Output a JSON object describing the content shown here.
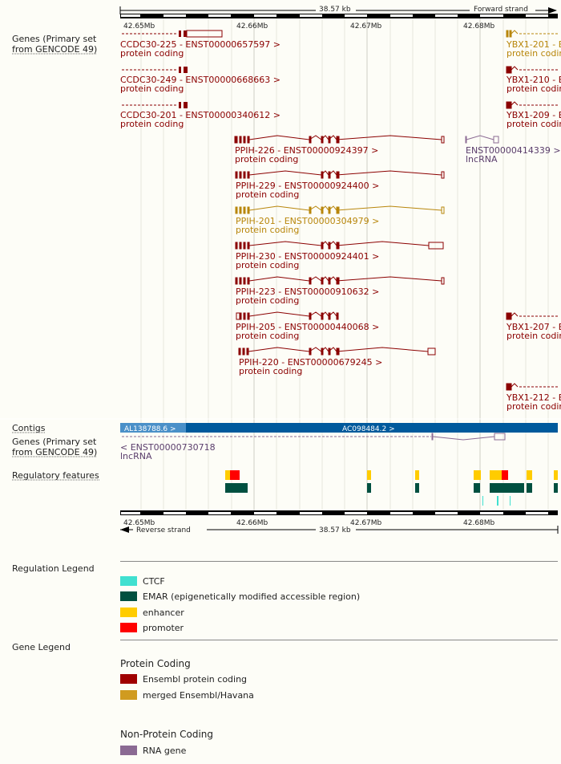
{
  "scale": {
    "top_length": "38.57 kb",
    "top_strand": "Forward strand",
    "bottom_length": "38.57 kb",
    "bottom_strand": "Reverse strand"
  },
  "ticks": [
    "42.65Mb",
    "42.66Mb",
    "42.67Mb",
    "42.68Mb"
  ],
  "tracks": {
    "genes_fwd": "Genes (Primary set\nfrom GENCODE 49)",
    "contigs": "Contigs",
    "genes_rev": "Genes (Primary set\nfrom GENCODE 49)",
    "regulatory": "Regulatory features"
  },
  "transcripts": [
    {
      "name": "CCDC30-225 - ENST00000657597 >",
      "type": "protein coding",
      "color": "#8b0000"
    },
    {
      "name": "CCDC30-249 - ENST00000668663 >",
      "type": "protein coding",
      "color": "#8b0000"
    },
    {
      "name": "CCDC30-201 - ENST00000340612 >",
      "type": "protein coding",
      "color": "#8b0000"
    },
    {
      "name": "PPIH-226 - ENST00000924397 >",
      "type": "protein coding",
      "color": "#8b0000"
    },
    {
      "name": "PPIH-229 - ENST00000924400 >",
      "type": "protein coding",
      "color": "#8b0000"
    },
    {
      "name": "PPIH-201 - ENST00000304979 >",
      "type": "protein coding",
      "color": "#b8860b"
    },
    {
      "name": "PPIH-230 - ENST00000924401 >",
      "type": "protein coding",
      "color": "#8b0000"
    },
    {
      "name": "PPIH-223 - ENST00000910632 >",
      "type": "protein coding",
      "color": "#8b0000"
    },
    {
      "name": "PPIH-205 - ENST00000440068 >",
      "type": "protein coding",
      "color": "#8b0000"
    },
    {
      "name": "PPIH-220 - ENST00000679245 >",
      "type": "protein coding",
      "color": "#8b0000"
    },
    {
      "name": "ENST00000414339 >",
      "type": "lncRNA",
      "color": "#5a3d6b"
    },
    {
      "name": "YBX1-201 - E",
      "type": "protein codin",
      "color": "#b8860b"
    },
    {
      "name": "YBX1-210 - E",
      "type": "protein codin",
      "color": "#8b0000"
    },
    {
      "name": "YBX1-209 - E",
      "type": "protein codin",
      "color": "#8b0000"
    },
    {
      "name": "YBX1-207 - E",
      "type": "protein codin",
      "color": "#8b0000"
    },
    {
      "name": "YBX1-212 - E",
      "type": "protein codin",
      "color": "#8b0000"
    }
  ],
  "contigs": {
    "left": "AL138788.6 >",
    "right": "AC098484.2 >"
  },
  "reverse_gene": {
    "name": "< ENST00000730718",
    "type": "lncRNA"
  },
  "regulation_legend": {
    "title": "Regulation Legend",
    "items": [
      {
        "label": "CTCF",
        "color": "#40e0d0"
      },
      {
        "label": "EMAR (epigenetically modified accessible region)",
        "color": "#005040"
      },
      {
        "label": "enhancer",
        "color": "#ffcc00"
      },
      {
        "label": "promoter",
        "color": "#ff0000"
      }
    ]
  },
  "gene_legend": {
    "title": "Gene Legend",
    "protein_coding": "Protein Coding",
    "pc_items": [
      {
        "label": "Ensembl protein coding",
        "color": "#a00000"
      },
      {
        "label": "merged Ensembl/Havana",
        "color": "#d09b20"
      }
    ],
    "non_protein_coding": "Non-Protein Coding",
    "npc_items": [
      {
        "label": "RNA gene",
        "color": "#8b6a93"
      }
    ]
  }
}
